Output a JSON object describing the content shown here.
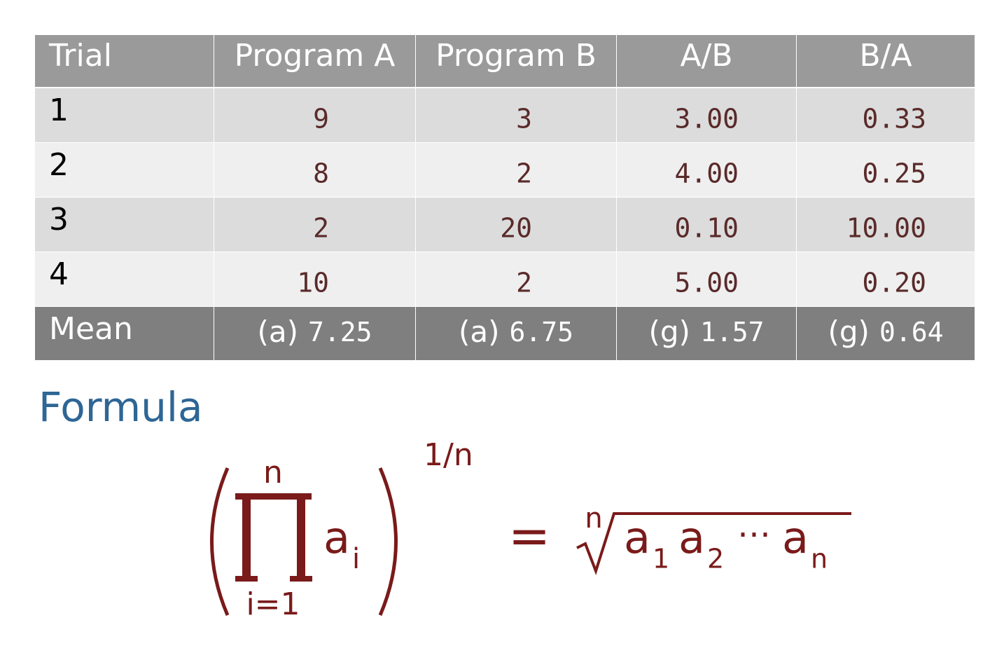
{
  "table": {
    "header": [
      "Trial",
      "Program A",
      "Program B",
      "A/B",
      "B/A"
    ],
    "rows": [
      [
        "1",
        "9",
        "3",
        "3.00",
        "0.33"
      ],
      [
        "2",
        "8",
        "2",
        "4.00",
        "0.25"
      ],
      [
        "3",
        "2",
        "20",
        "0.10",
        "10.00"
      ],
      [
        "4",
        "10",
        "2",
        "5.00",
        "0.20"
      ]
    ],
    "mean": {
      "label": "Mean",
      "cells": [
        {
          "kind": "(a)",
          "value": "7.25"
        },
        {
          "kind": "(a)",
          "value": "6.75"
        },
        {
          "kind": "(g)",
          "value": "1.57"
        },
        {
          "kind": "(g)",
          "value": "0.64"
        }
      ]
    }
  },
  "formula": {
    "heading": "Formula",
    "upper": "n",
    "lower": "i=1",
    "term": "a",
    "term_sub": "i",
    "exponent": "1/n",
    "equals": "=",
    "root_index": "n",
    "rhs": [
      {
        "base": "a",
        "sub": "1"
      },
      {
        "base": "a",
        "sub": "2"
      },
      {
        "dots": "⋯"
      },
      {
        "base": "a",
        "sub": "n"
      }
    ]
  }
}
